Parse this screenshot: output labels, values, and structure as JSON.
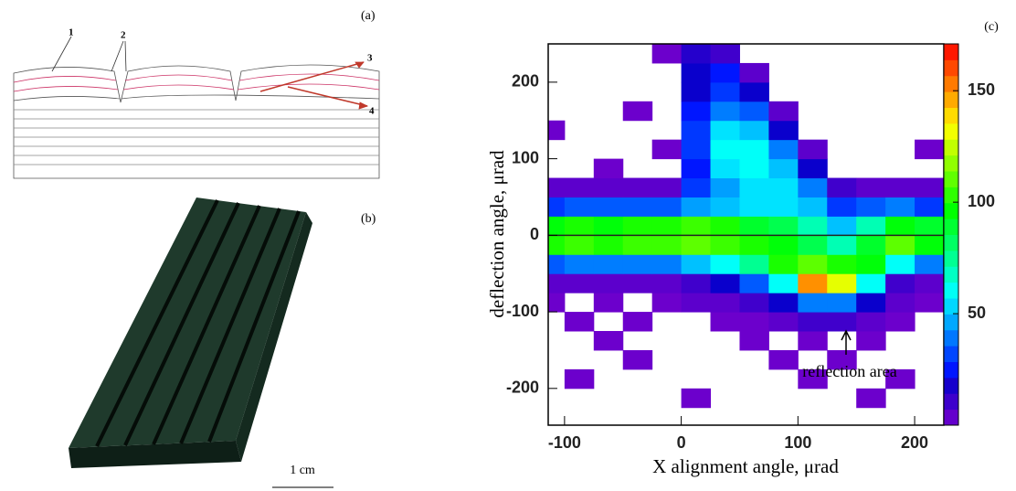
{
  "panel_a": {
    "label": "(a)",
    "markers": [
      "1",
      "2",
      "3",
      "4"
    ]
  },
  "panel_b": {
    "label": "(b)",
    "scale_bar": "1 cm"
  },
  "chart_data": {
    "type": "heatmap",
    "panel_label": "(c)",
    "x_label": "X alignment angle,  μrad",
    "y_label": "deflection angle,  μrad",
    "annotation": "reflection area",
    "xlim": [
      -114,
      225
    ],
    "ylim": [
      -248,
      250
    ],
    "zlim": [
      0,
      171
    ],
    "xticks": [
      -100,
      0,
      100,
      200
    ],
    "yticks": [
      -200,
      -100,
      0,
      100,
      200
    ],
    "zticks": [
      50,
      100,
      150
    ],
    "x_bins": [
      -125,
      -100,
      -75,
      -50,
      -25,
      0,
      25,
      50,
      75,
      100,
      125,
      150,
      175,
      200,
      225
    ],
    "y_bins": [
      -250,
      -225,
      -200,
      -175,
      -150,
      -125,
      -100,
      -75,
      -50,
      -25,
      0,
      25,
      50,
      75,
      100,
      125,
      150,
      175,
      200,
      225,
      250
    ],
    "z": [
      [
        0,
        0,
        0,
        0,
        0,
        0,
        0,
        0,
        0,
        0,
        0,
        0,
        0,
        0
      ],
      [
        0,
        0,
        0,
        0,
        0,
        2,
        0,
        0,
        0,
        0,
        0,
        2,
        0,
        0
      ],
      [
        0,
        2,
        0,
        0,
        0,
        0,
        0,
        0,
        0,
        2,
        0,
        0,
        2,
        0
      ],
      [
        0,
        0,
        0,
        2,
        0,
        0,
        0,
        0,
        2,
        0,
        2,
        0,
        0,
        0
      ],
      [
        0,
        0,
        2,
        0,
        0,
        0,
        0,
        2,
        0,
        2,
        0,
        2,
        0,
        0
      ],
      [
        0,
        2,
        0,
        2,
        0,
        0,
        2,
        2,
        5,
        10,
        10,
        5,
        2,
        0
      ],
      [
        2,
        0,
        2,
        0,
        2,
        5,
        5,
        10,
        20,
        40,
        40,
        20,
        5,
        2
      ],
      [
        5,
        5,
        5,
        5,
        5,
        10,
        20,
        35,
        60,
        150,
        130,
        60,
        10,
        5
      ],
      [
        35,
        40,
        40,
        40,
        40,
        50,
        60,
        75,
        100,
        110,
        100,
        95,
        60,
        40
      ],
      [
        100,
        105,
        100,
        105,
        105,
        110,
        105,
        100,
        95,
        85,
        70,
        90,
        110,
        95
      ],
      [
        95,
        100,
        95,
        100,
        100,
        105,
        100,
        90,
        85,
        70,
        50,
        70,
        95,
        90
      ],
      [
        30,
        35,
        35,
        35,
        35,
        45,
        50,
        55,
        55,
        50,
        30,
        35,
        40,
        30
      ],
      [
        5,
        5,
        5,
        5,
        5,
        30,
        45,
        55,
        55,
        40,
        10,
        5,
        5,
        5
      ],
      [
        0,
        0,
        2,
        0,
        0,
        25,
        55,
        60,
        50,
        20,
        0,
        0,
        0,
        0
      ],
      [
        0,
        0,
        0,
        0,
        2,
        30,
        60,
        60,
        40,
        5,
        0,
        0,
        0,
        2
      ],
      [
        2,
        0,
        0,
        0,
        0,
        30,
        55,
        50,
        20,
        0,
        0,
        0,
        0,
        0
      ],
      [
        0,
        0,
        0,
        2,
        0,
        25,
        40,
        35,
        5,
        0,
        0,
        0,
        0,
        0
      ],
      [
        0,
        0,
        0,
        0,
        0,
        20,
        30,
        20,
        0,
        0,
        0,
        0,
        0,
        0
      ],
      [
        0,
        0,
        0,
        0,
        0,
        20,
        25,
        5,
        0,
        0,
        0,
        0,
        0,
        0
      ],
      [
        0,
        0,
        0,
        0,
        2,
        15,
        10,
        0,
        0,
        0,
        0,
        0,
        0,
        0
      ]
    ]
  }
}
